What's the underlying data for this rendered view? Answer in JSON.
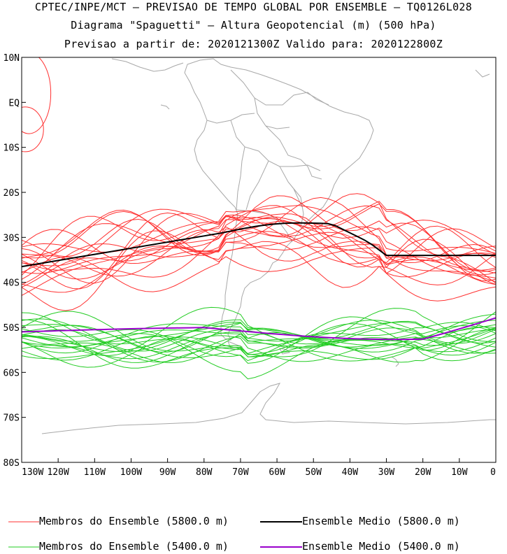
{
  "header": {
    "line1": "CPTEC/INPE/MCT – PREVISAO DE TEMPO GLOBAL POR ENSEMBLE – TQ0126L028",
    "line2": "Diagrama \"Spaguetti\" – Altura Geopotencial (m) (500 hPa)",
    "line3": "Previsao a partir de: 2020121300Z  Valido para: 2020122800Z"
  },
  "map": {
    "lat_labels": [
      "10N",
      "EQ",
      "10S",
      "20S",
      "30S",
      "40S",
      "50S",
      "60S",
      "70S",
      "80S"
    ],
    "lon_labels": [
      "130W",
      "120W",
      "110W",
      "100W",
      "90W",
      "80W",
      "70W",
      "60W",
      "50W",
      "40W",
      "30W",
      "20W",
      "10W",
      "0"
    ],
    "lat_range": [
      -80,
      10
    ],
    "lon_range": [
      -130,
      0
    ]
  },
  "legend": {
    "red_members": "Membros do Ensemble (5800.0 m)",
    "black_mean": "Ensemble Medio (5800.0 m)",
    "green_members": "Membros do Ensemble (5400.0 m)",
    "purple_mean": "Ensemble Medio (5400.0 m)"
  },
  "colors": {
    "red_members": "#ff3030",
    "black_mean": "#000000",
    "green_members": "#22cc22",
    "purple_mean": "#9900cc",
    "coast": "#a8a8a8"
  }
}
